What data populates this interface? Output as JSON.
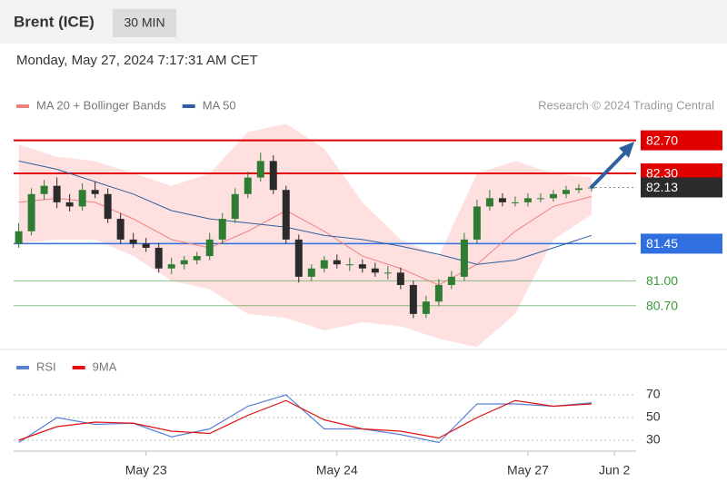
{
  "header": {
    "title": "Brent (ICE)",
    "interval": "30 MIN",
    "timestamp": "Monday, May 27, 2024 7:17:31 AM CET"
  },
  "chart_data": [
    {
      "type": "candlestick",
      "source": "Research © 2024 Trading Central",
      "open": [
        81.45,
        81.6,
        82.05,
        82.15,
        81.95,
        81.9,
        82.1,
        82.05,
        81.75,
        81.5,
        81.45,
        81.4,
        81.15,
        81.2,
        81.25,
        81.3,
        81.5,
        81.75,
        82.05,
        82.25,
        82.45,
        82.1,
        81.5,
        81.05,
        81.15,
        81.25,
        81.2,
        81.2,
        81.15,
        81.1,
        81.1,
        80.95,
        80.6,
        80.75,
        80.95,
        81.05,
        81.5,
        81.9,
        82.0,
        81.95,
        81.95,
        82.0,
        82.0,
        82.05,
        82.1,
        82.12
      ],
      "high": [
        81.7,
        82.12,
        82.22,
        82.25,
        82.05,
        82.18,
        82.2,
        82.12,
        81.82,
        81.58,
        81.52,
        81.46,
        81.28,
        81.3,
        81.35,
        81.58,
        81.82,
        82.12,
        82.32,
        82.55,
        82.52,
        82.15,
        81.56,
        81.2,
        81.3,
        81.32,
        81.28,
        81.26,
        81.22,
        81.18,
        81.16,
        81.0,
        80.82,
        81.02,
        81.12,
        81.58,
        81.98,
        82.1,
        82.06,
        82.02,
        82.06,
        82.06,
        82.1,
        82.15,
        82.17,
        82.17
      ],
      "low": [
        81.4,
        81.55,
        81.98,
        81.88,
        81.84,
        81.85,
        82.0,
        81.7,
        81.45,
        81.4,
        81.35,
        81.1,
        81.08,
        81.14,
        81.2,
        81.25,
        81.45,
        81.7,
        82.0,
        82.2,
        82.05,
        81.45,
        80.98,
        81.0,
        81.1,
        81.15,
        81.12,
        81.1,
        81.05,
        81.02,
        80.9,
        80.55,
        80.55,
        80.7,
        80.9,
        81.0,
        81.45,
        81.85,
        81.9,
        81.9,
        81.9,
        81.95,
        81.96,
        82.0,
        82.06,
        82.08
      ],
      "close": [
        81.6,
        82.05,
        82.15,
        81.95,
        81.9,
        82.1,
        82.05,
        81.75,
        81.5,
        81.45,
        81.4,
        81.15,
        81.2,
        81.25,
        81.3,
        81.5,
        81.75,
        82.05,
        82.25,
        82.45,
        82.1,
        81.5,
        81.05,
        81.15,
        81.25,
        81.2,
        81.2,
        81.15,
        81.1,
        81.1,
        80.95,
        80.6,
        80.75,
        80.95,
        81.05,
        81.5,
        81.9,
        82.0,
        81.95,
        81.95,
        82.0,
        82.0,
        82.05,
        82.1,
        82.12,
        82.13
      ],
      "up_color": "#2e7d32",
      "down_color": "#2b2b2b",
      "series": [
        {
          "name": "MA 20 + Bollinger Bands",
          "color": "#f08080",
          "band_color": "#ffd6d6",
          "x": [
            0,
            3,
            6,
            9,
            12,
            15,
            18,
            21,
            24,
            27,
            30,
            33,
            36,
            39,
            42,
            45
          ],
          "values": [
            81.95,
            82.0,
            81.95,
            81.75,
            81.5,
            81.4,
            81.6,
            81.85,
            81.6,
            81.3,
            81.15,
            80.95,
            81.2,
            81.6,
            81.9,
            82.02
          ],
          "upper": [
            82.65,
            82.5,
            82.45,
            82.3,
            82.15,
            82.3,
            82.8,
            82.9,
            82.6,
            81.95,
            81.5,
            81.3,
            82.3,
            82.45,
            82.3,
            82.25
          ],
          "lower": [
            81.45,
            81.5,
            81.5,
            81.3,
            81.0,
            80.9,
            80.6,
            80.55,
            80.4,
            80.5,
            80.45,
            80.3,
            80.2,
            80.6,
            81.5,
            81.8
          ]
        },
        {
          "name": "MA 50",
          "color": "#2f5f9e",
          "x": [
            0,
            3,
            6,
            9,
            12,
            15,
            18,
            21,
            24,
            27,
            30,
            33,
            36,
            39,
            42,
            45
          ],
          "values": [
            82.45,
            82.35,
            82.2,
            82.05,
            81.85,
            81.75,
            81.7,
            81.65,
            81.55,
            81.5,
            81.42,
            81.32,
            81.2,
            81.25,
            81.4,
            81.55
          ]
        }
      ],
      "levels": [
        {
          "value": 82.7,
          "label": "82.70",
          "color": "#e00000",
          "style": "box",
          "line": "solid"
        },
        {
          "value": 82.3,
          "label": "82.30",
          "color": "#e00000",
          "style": "box",
          "line": "solid"
        },
        {
          "value": 82.13,
          "label": "82.13",
          "color": "#2b2b2b",
          "style": "box",
          "line": "dotted"
        },
        {
          "value": 81.45,
          "label": "81.45",
          "color": "#2f6fe0",
          "style": "box",
          "line": "solid"
        },
        {
          "value": 81.0,
          "label": "81.00",
          "color": "#3a9a3a",
          "style": "text",
          "line": "solid"
        },
        {
          "value": 80.7,
          "label": "80.70",
          "color": "#3a9a3a",
          "style": "text",
          "line": "solid"
        }
      ],
      "xlim": [
        -0.4,
        48.5
      ],
      "ylim": [
        80.17,
        82.97
      ]
    },
    {
      "type": "line",
      "x": [
        0,
        3,
        6,
        9,
        12,
        15,
        18,
        21,
        24,
        27,
        30,
        33,
        36,
        39,
        42,
        45
      ],
      "series": [
        {
          "name": "RSI",
          "color": "#5b7fd6",
          "values": [
            28,
            50,
            44,
            45,
            33,
            40,
            60,
            70,
            40,
            40,
            35,
            28,
            62,
            62,
            60,
            63
          ]
        },
        {
          "name": "9MA",
          "color": "#e01010",
          "values": [
            30,
            42,
            46,
            45,
            38,
            36,
            52,
            65,
            48,
            40,
            38,
            32,
            50,
            65,
            60,
            62
          ]
        }
      ],
      "xlim": [
        -0.4,
        48.5
      ],
      "ylim": [
        20,
        82
      ],
      "yticks": [
        30,
        50,
        70
      ],
      "xticks": [
        {
          "value": 10,
          "label": "May 23"
        },
        {
          "value": 25,
          "label": "May 24"
        },
        {
          "value": 40,
          "label": "May 27"
        },
        {
          "value": 46.8,
          "label": "Jun 2"
        }
      ]
    }
  ]
}
